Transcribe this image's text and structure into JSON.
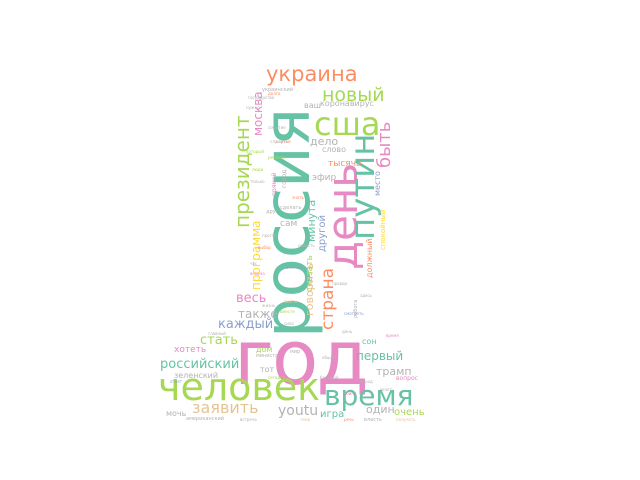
{
  "palette": {
    "teal": "#66c2a5",
    "orange": "#fc8d62",
    "blue": "#8da0cb",
    "pink": "#e78ac3",
    "green": "#a6d854",
    "yellow": "#ffd92f",
    "tan": "#e5c494",
    "grey": "#b3b3b3"
  },
  "words": {
    "god": "год",
    "rossiya": "россия",
    "chelovek": "человек",
    "den": "день",
    "vremya": "время",
    "putin": "путин",
    "ssha": "сша",
    "ukraina": "украина",
    "novyy": "новый",
    "prezident": "президент",
    "zayavit": "заявить",
    "byt": "быть",
    "strana": "страна",
    "rossiyskiy": "российский",
    "moskva": "москва",
    "vremya_small": "время",
    "programma": "программа",
    "ves": "весь",
    "takzhe": "также",
    "kazhdyy": "каждый",
    "stat": "стать",
    "youtu": "youtu",
    "pervyy": "первый",
    "tramp": "трамп",
    "odin": "один",
    "ochen": "очень",
    "igra": "игра",
    "govorit": "говорить",
    "skazat": "сказать",
    "minuta": "минута",
    "drugoy": "другой",
    "delo": "дело",
    "slovo": "слово",
    "tysyacha": "тысяча",
    "efir": "эфир",
    "koronavirus": "коронавирус",
    "vash": "ваш",
    "son": "сон",
    "mesto": "место",
    "dolzhnyy": "должный",
    "spokoynyy": "спокойный",
    "zelenskiy": "зеленский",
    "khotet": "хотеть",
    "dom": "дом",
    "tot": "тот",
    "sam": "сам",
    "ministr": "министр",
    "mir": "мир",
    "vopros": "вопрос",
    "moch": "мочь",
    "amerikanskiy": "американский",
    "vlast": "власть",
    "poluchit": "получить",
    "ukrainskiy": "украинский",
    "rebenok": "ребёнок",
    "gorod": "город",
    "rabota": "работа",
    "smotret": "смотреть",
    "sdelat": "сделать",
    "vmeste": "вместе",
    "vyyti": "выйти",
    "zhizn": "жизнь",
    "drug": "друг",
    "prosto": "просто",
    "vesma": "весьма",
    "pryamoy": "прямой",
    "kotoryy": "который",
    "vybor": "выбор",
    "nuzhno": "нужно",
    "sobytie": "событие",
    "sluchay": "случай",
    "glavnyy": "главный",
    "segodnya": "сегодня",
    "voyna": "война",
    "narod": "народ",
    "sila": "сила",
    "znat": "знать",
    "novost": "новость",
    "vazhnyy": "важный",
    "dolgo": "долго",
    "chas": "час",
    "pravda": "правда",
    "gosudarstvo": "государство",
    "obshchiy": "общий",
    "bolshoy": "большой",
    "mnogo": "много",
    "zdes": "здесь",
    "tolko": "только",
    "tema": "тема",
    "vstrecha": "встреча",
    "lyudi": "люди",
    "rech": "речь",
    "otvet": "ответ",
    "slushat": "слушать",
    "den_small": "день"
  }
}
